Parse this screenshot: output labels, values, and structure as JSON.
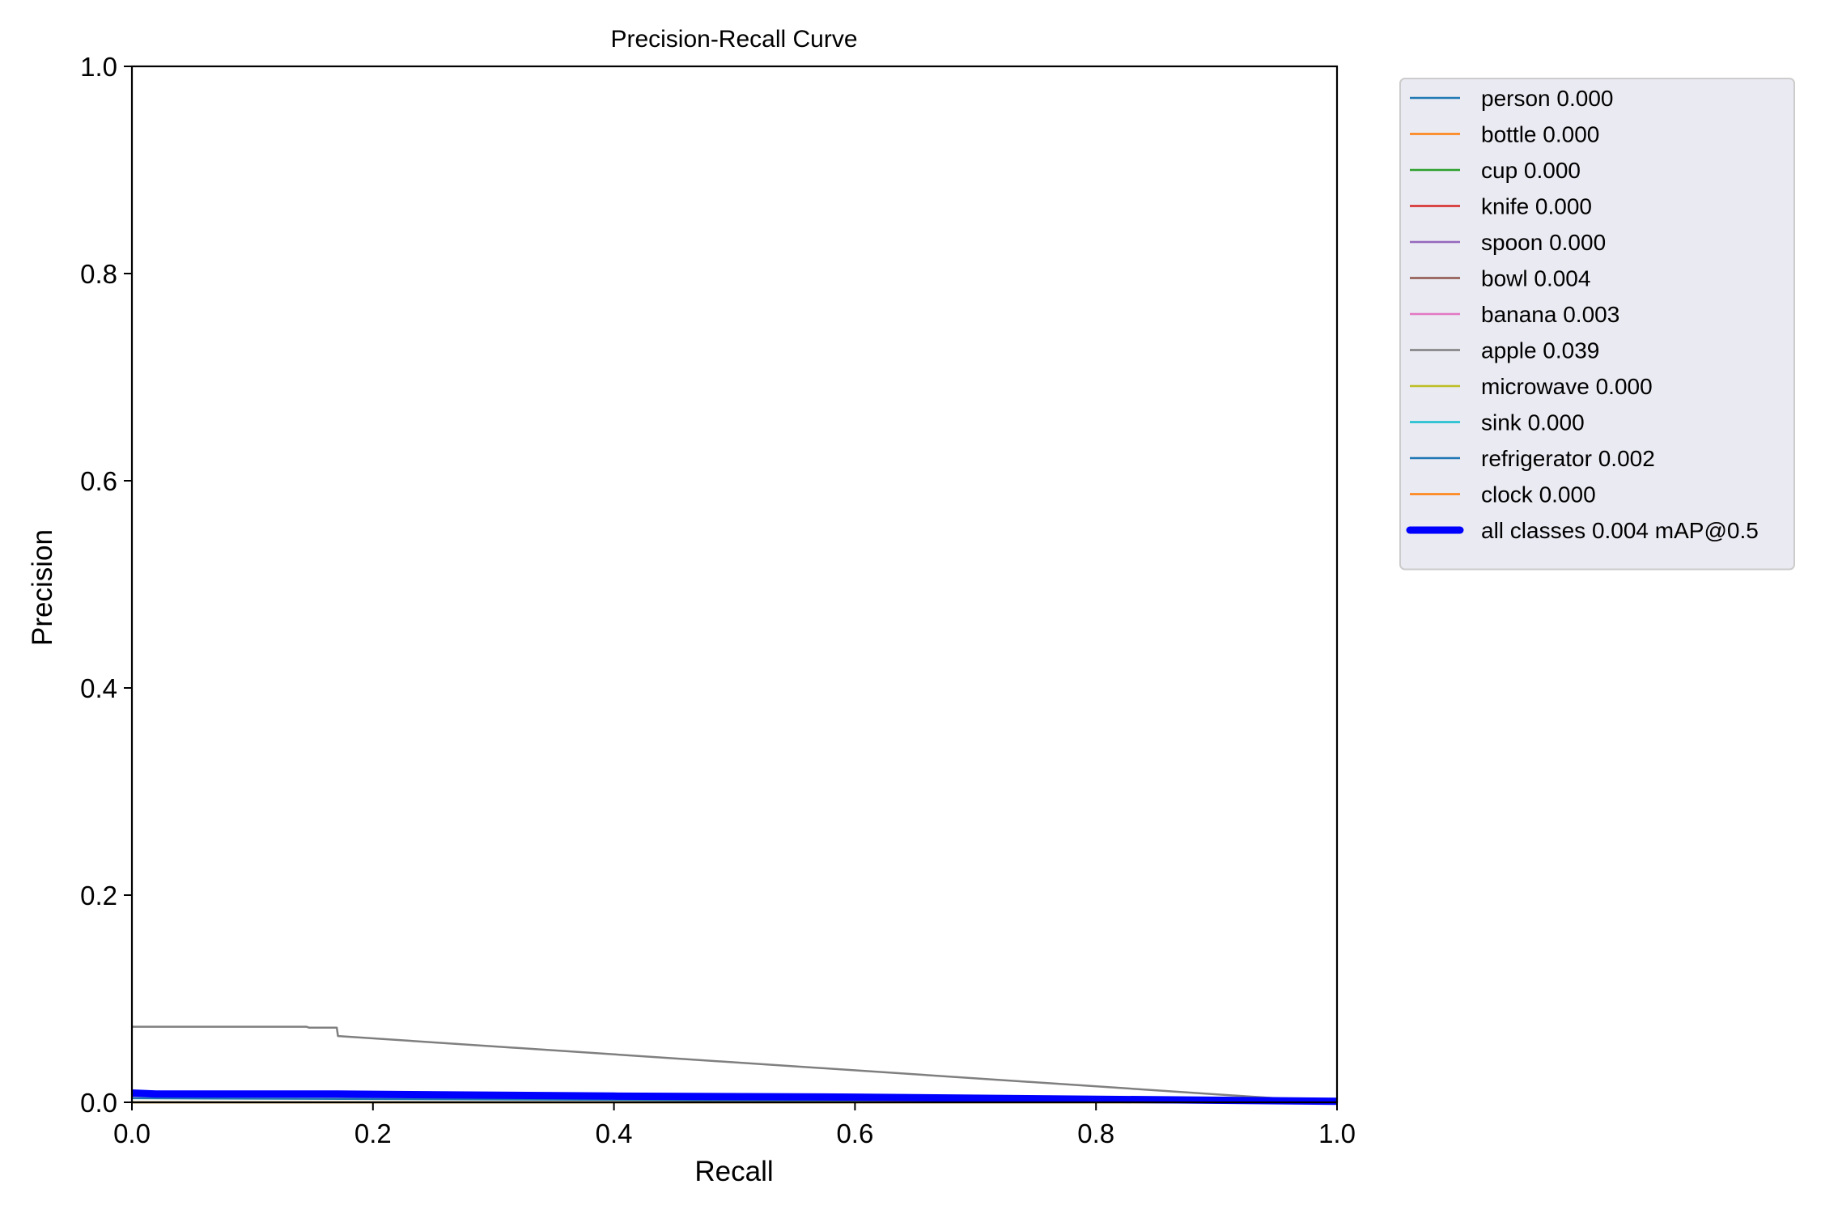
{
  "chart_data": {
    "type": "line",
    "title": "Precision-Recall Curve",
    "xlabel": "Recall",
    "ylabel": "Precision",
    "xlim": [
      0.0,
      1.0
    ],
    "ylim": [
      0.0,
      1.0
    ],
    "xticks": [
      "0.0",
      "0.2",
      "0.4",
      "0.6",
      "0.8",
      "1.0"
    ],
    "yticks": [
      "0.0",
      "0.2",
      "0.4",
      "0.6",
      "0.8",
      "1.0"
    ],
    "grid": false,
    "legend_position": "outside right",
    "series": [
      {
        "name": "person 0.000",
        "color": "#1f77b4",
        "x": [
          0,
          1
        ],
        "y": [
          0.0,
          0.0
        ]
      },
      {
        "name": "bottle 0.000",
        "color": "#ff7f0e",
        "x": [
          0,
          1
        ],
        "y": [
          0.0,
          0.0
        ]
      },
      {
        "name": "cup 0.000",
        "color": "#2ca02c",
        "x": [
          0,
          1
        ],
        "y": [
          0.0,
          0.0
        ]
      },
      {
        "name": "knife 0.000",
        "color": "#d62728",
        "x": [
          0,
          1
        ],
        "y": [
          0.0,
          0.0
        ]
      },
      {
        "name": "spoon 0.000",
        "color": "#9467bd",
        "x": [
          0,
          1
        ],
        "y": [
          0.0,
          0.0
        ]
      },
      {
        "name": "bowl 0.004",
        "color": "#8c564b",
        "x": [
          0,
          0.2,
          0.6,
          1.0
        ],
        "y": [
          0.008,
          0.007,
          0.004,
          0.001
        ]
      },
      {
        "name": "banana 0.003",
        "color": "#e377c2",
        "x": [
          0,
          0.3,
          0.7,
          1.0
        ],
        "y": [
          0.006,
          0.005,
          0.003,
          0.001
        ]
      },
      {
        "name": "apple 0.039",
        "color": "#7f7f7f",
        "x": [
          0,
          0.145,
          0.147,
          0.17,
          0.171,
          1.0
        ],
        "y": [
          0.073,
          0.073,
          0.072,
          0.072,
          0.064,
          0.0
        ]
      },
      {
        "name": "microwave 0.000",
        "color": "#bcbd22",
        "x": [
          0,
          1
        ],
        "y": [
          0.0,
          0.0
        ]
      },
      {
        "name": "sink 0.000",
        "color": "#17becf",
        "x": [
          0,
          1
        ],
        "y": [
          0.0,
          0.0
        ]
      },
      {
        "name": "refrigerator 0.002",
        "color": "#1f77b4",
        "x": [
          0,
          0.5,
          1.0
        ],
        "y": [
          0.004,
          0.002,
          0.001
        ]
      },
      {
        "name": "clock 0.000",
        "color": "#ff7f0e",
        "x": [
          0,
          1
        ],
        "y": [
          0.0,
          0.0
        ]
      },
      {
        "name": "all classes 0.004 mAP@0.5",
        "color": "#0000ff",
        "thick": true,
        "x": [
          0,
          0.02,
          0.17,
          0.4,
          0.6,
          0.8,
          1.0
        ],
        "y": [
          0.009,
          0.008,
          0.008,
          0.006,
          0.005,
          0.003,
          0.001
        ]
      }
    ]
  }
}
